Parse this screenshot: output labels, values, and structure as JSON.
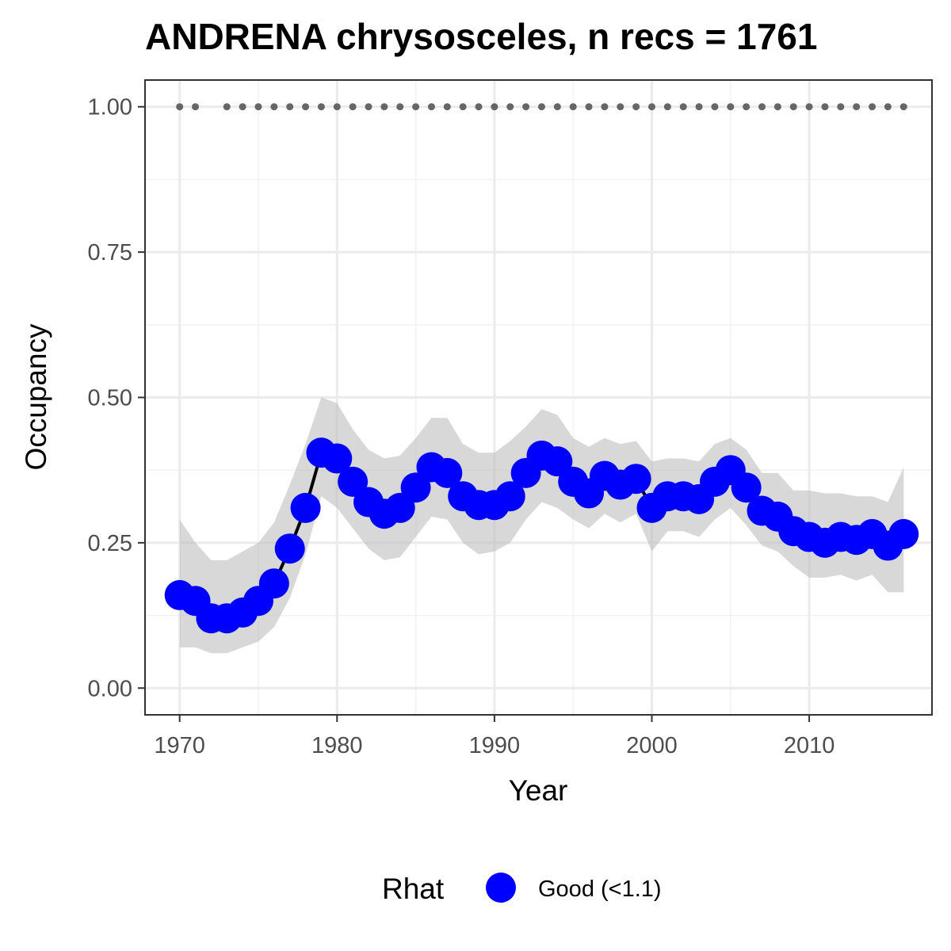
{
  "chart_data": {
    "type": "line",
    "title": "ANDRENA chrysosceles, n recs = 1761",
    "xlabel": "Year",
    "ylabel": "Occupancy",
    "xlim": [
      1967.8,
      2017.8
    ],
    "ylim": [
      -0.046,
      1.046
    ],
    "x_ticks": [
      1970,
      1980,
      1990,
      2000,
      2010
    ],
    "x_tick_labels": [
      "1970",
      "1980",
      "1990",
      "2000",
      "2010"
    ],
    "y_ticks": [
      0,
      0.25,
      0.5,
      0.75,
      1.0
    ],
    "y_tick_labels": [
      "0.00",
      "0.25",
      "0.50",
      "0.75",
      "1.00"
    ],
    "grid": true,
    "legend": {
      "title": "Rhat",
      "position": "bottom",
      "entries": [
        {
          "label": "Good (<1.1)",
          "color": "#0000ff"
        }
      ]
    },
    "colors": {
      "points": "#0000ff",
      "line": "#000000",
      "ribbon": "#bebebe",
      "records": "#666666"
    },
    "record_years_at_1": [
      1970,
      1971,
      1973,
      1974,
      1975,
      1976,
      1977,
      1978,
      1979,
      1980,
      1981,
      1982,
      1983,
      1984,
      1985,
      1986,
      1987,
      1988,
      1989,
      1990,
      1991,
      1992,
      1993,
      1994,
      1995,
      1996,
      1997,
      1998,
      1999,
      2000,
      2001,
      2002,
      2003,
      2004,
      2005,
      2006,
      2007,
      2008,
      2009,
      2010,
      2011,
      2012,
      2013,
      2014,
      2015,
      2016
    ],
    "series": [
      {
        "name": "Good (<1.1)",
        "x": [
          1970,
          1971,
          1972,
          1973,
          1974,
          1975,
          1976,
          1977,
          1978,
          1979,
          1980,
          1981,
          1982,
          1983,
          1984,
          1985,
          1986,
          1987,
          1988,
          1989,
          1990,
          1991,
          1992,
          1993,
          1994,
          1995,
          1996,
          1997,
          1998,
          1999,
          2000,
          2001,
          2002,
          2003,
          2004,
          2005,
          2006,
          2007,
          2008,
          2009,
          2010,
          2011,
          2012,
          2013,
          2014,
          2015,
          2016
        ],
        "y": [
          0.16,
          0.15,
          0.12,
          0.12,
          0.13,
          0.15,
          0.18,
          0.24,
          0.31,
          0.405,
          0.395,
          0.355,
          0.32,
          0.3,
          0.31,
          0.345,
          0.38,
          0.37,
          0.33,
          0.315,
          0.315,
          0.33,
          0.37,
          0.4,
          0.39,
          0.355,
          0.335,
          0.365,
          0.35,
          0.36,
          0.31,
          0.33,
          0.33,
          0.325,
          0.355,
          0.375,
          0.345,
          0.305,
          0.295,
          0.27,
          0.26,
          0.25,
          0.26,
          0.255,
          0.265,
          0.245,
          0.265
        ],
        "lower": [
          0.07,
          0.07,
          0.06,
          0.06,
          0.07,
          0.08,
          0.105,
          0.155,
          0.23,
          0.33,
          0.31,
          0.275,
          0.24,
          0.22,
          0.225,
          0.26,
          0.295,
          0.29,
          0.25,
          0.23,
          0.235,
          0.25,
          0.29,
          0.32,
          0.31,
          0.29,
          0.275,
          0.3,
          0.285,
          0.3,
          0.235,
          0.27,
          0.27,
          0.26,
          0.29,
          0.31,
          0.28,
          0.245,
          0.235,
          0.21,
          0.19,
          0.19,
          0.195,
          0.185,
          0.195,
          0.165,
          0.165
        ],
        "upper": [
          0.29,
          0.25,
          0.22,
          0.22,
          0.235,
          0.25,
          0.285,
          0.35,
          0.42,
          0.5,
          0.49,
          0.445,
          0.41,
          0.395,
          0.4,
          0.43,
          0.465,
          0.465,
          0.42,
          0.405,
          0.405,
          0.425,
          0.45,
          0.48,
          0.47,
          0.43,
          0.415,
          0.43,
          0.42,
          0.425,
          0.39,
          0.395,
          0.395,
          0.39,
          0.42,
          0.43,
          0.41,
          0.37,
          0.37,
          0.34,
          0.34,
          0.335,
          0.335,
          0.33,
          0.33,
          0.32,
          0.38
        ]
      }
    ]
  }
}
